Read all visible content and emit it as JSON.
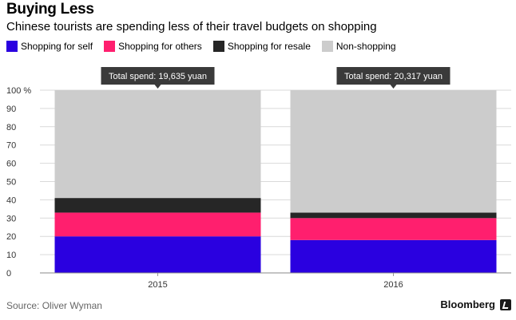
{
  "header": {
    "title": "Buying Less",
    "subtitle": "Chinese tourists are spending less of their travel budgets on shopping"
  },
  "footer": {
    "source": "Source: Oliver Wyman",
    "brand": "Bloomberg"
  },
  "chart_data": {
    "type": "bar",
    "stacked": true,
    "categories": [
      "2015",
      "2016"
    ],
    "series": [
      {
        "name": "Shopping for self",
        "color": "#2a00e0",
        "values": [
          20,
          18
        ]
      },
      {
        "name": "Shopping for others",
        "color": "#ff1f6e",
        "values": [
          13,
          12
        ]
      },
      {
        "name": "Shopping for resale",
        "color": "#262626",
        "values": [
          8,
          3
        ]
      },
      {
        "name": "Non-shopping",
        "color": "#cccccc",
        "values": [
          59,
          67
        ]
      }
    ],
    "annotations": [
      "Total spend: 19,635 yuan",
      "Total spend: 20,317 yuan"
    ],
    "yticks": [
      "0",
      "10",
      "20",
      "30",
      "40",
      "50",
      "60",
      "70",
      "80",
      "90",
      "100 %"
    ],
    "ylim": [
      0,
      100
    ],
    "xlabel": "",
    "ylabel": "",
    "grid": true,
    "legend": "top-left"
  }
}
